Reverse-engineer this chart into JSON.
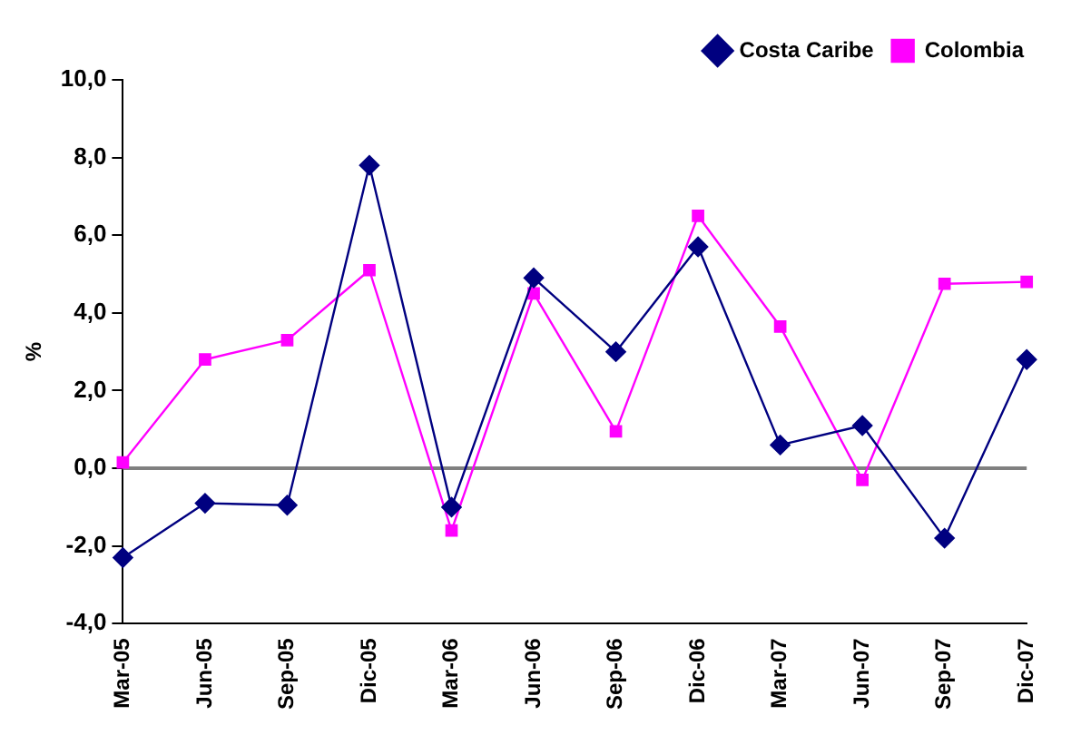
{
  "chart_data": {
    "type": "line",
    "ylabel": "%",
    "categories": [
      "Mar-05",
      "Jun-05",
      "Sep-05",
      "Dic-05",
      "Mar-06",
      "Jun-06",
      "Sep-06",
      "Dic-06",
      "Mar-07",
      "Jun-07",
      "Sep-07",
      "Dic-07"
    ],
    "series": [
      {
        "name": "Costa Caribe",
        "color": "#000080",
        "marker": "diamond",
        "values": [
          -2.3,
          -0.9,
          -0.95,
          7.8,
          -1.0,
          4.9,
          3.0,
          5.7,
          0.6,
          1.1,
          -1.8,
          2.8
        ]
      },
      {
        "name": "Colombia",
        "color": "#ff00ff",
        "marker": "square",
        "values": [
          0.15,
          2.8,
          3.3,
          5.1,
          -1.6,
          4.5,
          0.95,
          6.5,
          3.65,
          -0.3,
          4.75,
          4.8
        ]
      }
    ],
    "ylim": [
      -4,
      10
    ],
    "yticks": [
      {
        "value": -4,
        "label": "-4,0"
      },
      {
        "value": -2,
        "label": "-2,0"
      },
      {
        "value": 0,
        "label": "0,0"
      },
      {
        "value": 2,
        "label": "2,0"
      },
      {
        "value": 4,
        "label": "4,0"
      },
      {
        "value": 6,
        "label": "6,0"
      },
      {
        "value": 8,
        "label": "8,0"
      },
      {
        "value": 10,
        "label": "10,0"
      }
    ],
    "ref_lines": [
      {
        "axis": "y",
        "value": 0,
        "color": "#808080"
      }
    ],
    "grid": false,
    "legend": "top right",
    "line_style": "solid"
  }
}
